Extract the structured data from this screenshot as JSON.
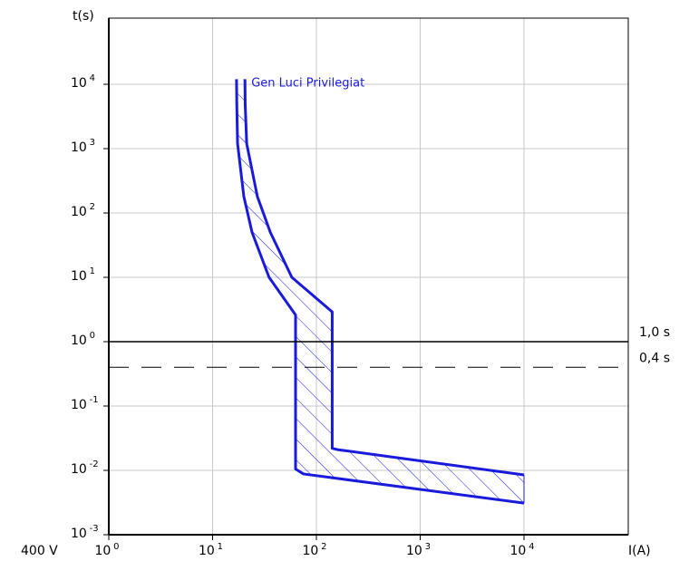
{
  "chart_data": {
    "type": "line",
    "title": "",
    "xlabel": "I(A)",
    "ylabel": "t(s)",
    "voltage_label": "400 V",
    "x_scale": "log",
    "y_scale": "log",
    "xlim": [
      1,
      60000
    ],
    "ylim": [
      0.001,
      50000
    ],
    "grid": true,
    "x_ticks": [
      {
        "base": "10",
        "exp": "0",
        "value": 1
      },
      {
        "base": "10",
        "exp": "1",
        "value": 10
      },
      {
        "base": "10",
        "exp": "2",
        "value": 100
      },
      {
        "base": "10",
        "exp": "3",
        "value": 1000
      },
      {
        "base": "10",
        "exp": "4",
        "value": 10000
      }
    ],
    "y_ticks": [
      {
        "base": "10",
        "exp": "-3",
        "value": 0.001
      },
      {
        "base": "10",
        "exp": "-2",
        "value": 0.01
      },
      {
        "base": "10",
        "exp": "-1",
        "value": 0.1
      },
      {
        "base": "10",
        "exp": "0",
        "value": 1
      },
      {
        "base": "10",
        "exp": "1",
        "value": 10
      },
      {
        "base": "10",
        "exp": "2",
        "value": 100
      },
      {
        "base": "10",
        "exp": "3",
        "value": 1000
      },
      {
        "base": "10",
        "exp": "4",
        "value": 10000
      }
    ],
    "reference_lines": [
      {
        "label": "1,0 s",
        "value": 1.0,
        "style": "solid"
      },
      {
        "label": "0,4 s",
        "value": 0.4,
        "style": "dashed"
      }
    ],
    "band_color": "#1a1adb",
    "series": [
      {
        "name": "Gen Luci Privilegiat",
        "role": "band",
        "lower_curve": [
          [
            17.0,
            12000
          ],
          [
            17.1,
            5000
          ],
          [
            17.4,
            1200
          ],
          [
            20,
            180
          ],
          [
            24,
            50
          ],
          [
            35,
            10
          ],
          [
            63,
            2.6
          ],
          [
            63,
            0.0105
          ],
          [
            75,
            0.0088
          ],
          [
            10000,
            0.0031
          ]
        ],
        "upper_curve": [
          [
            20.5,
            12000
          ],
          [
            20.6,
            5000
          ],
          [
            21.3,
            1200
          ],
          [
            27,
            180
          ],
          [
            36,
            50
          ],
          [
            58,
            10
          ],
          [
            142,
            2.9
          ],
          [
            142,
            0.022
          ],
          [
            160,
            0.021
          ],
          [
            10000,
            0.0085
          ]
        ]
      }
    ]
  }
}
